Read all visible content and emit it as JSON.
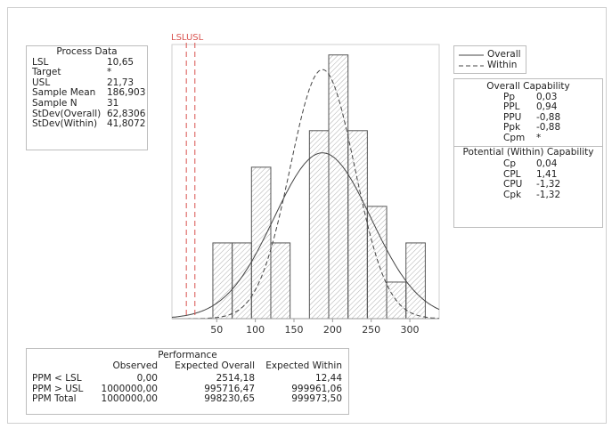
{
  "process_data": {
    "title": "Process Data",
    "rows": [
      {
        "label": "LSL",
        "value": "10,65"
      },
      {
        "label": "Target",
        "value": "*"
      },
      {
        "label": "USL",
        "value": "21,73"
      },
      {
        "label": "Sample Mean",
        "value": "186,903"
      },
      {
        "label": "Sample N",
        "value": "31"
      },
      {
        "label": "StDev(Overall)",
        "value": "62,8306"
      },
      {
        "label": "StDev(Within)",
        "value": "41,8072"
      }
    ]
  },
  "legend": {
    "items": [
      {
        "label": "Overall",
        "style": "solid"
      },
      {
        "label": "Within",
        "style": "dashed"
      }
    ]
  },
  "overall_capability": {
    "title": "Overall Capability",
    "rows": [
      {
        "label": "Pp",
        "value": "0,03"
      },
      {
        "label": "PPL",
        "value": "0,94"
      },
      {
        "label": "PPU",
        "value": "-0,88"
      },
      {
        "label": "Ppk",
        "value": "-0,88"
      },
      {
        "label": "Cpm",
        "value": "*"
      }
    ]
  },
  "potential_capability": {
    "title": "Potential (Within) Capability",
    "rows": [
      {
        "label": "Cp",
        "value": "0,04"
      },
      {
        "label": "CPL",
        "value": "1,41"
      },
      {
        "label": "CPU",
        "value": "-1,32"
      },
      {
        "label": "Cpk",
        "value": "-1,32"
      }
    ]
  },
  "performance": {
    "title": "Performance",
    "headers": [
      "Observed",
      "Expected Overall",
      "Expected Within"
    ],
    "rows": [
      {
        "label": "PPM < LSL",
        "observed": "0,00",
        "expected_overall": "2514,18",
        "expected_within": "12,44"
      },
      {
        "label": "PPM > USL",
        "observed": "1000000,00",
        "expected_overall": "995716,47",
        "expected_within": "999961,06"
      },
      {
        "label": "PPM Total",
        "observed": "1000000,00",
        "expected_overall": "998230,65",
        "expected_within": "999973,50"
      }
    ]
  },
  "chart_data": {
    "type": "bar",
    "title": "",
    "xlabel": "",
    "ylabel": "",
    "xlim": [
      -8,
      338
    ],
    "ylim": [
      0,
      0.0105
    ],
    "x_ticks": [
      50,
      100,
      150,
      200,
      250,
      300
    ],
    "spec_lines": [
      {
        "label": "LSL",
        "value": 10.65
      },
      {
        "label": "USL",
        "value": 21.73
      }
    ],
    "spec_label_text": "LSLUSL",
    "histogram": {
      "bins": [
        {
          "start": 45,
          "end": 70,
          "density": 0.0029
        },
        {
          "start": 70,
          "end": 95,
          "density": 0.0029
        },
        {
          "start": 95,
          "end": 120,
          "density": 0.0058
        },
        {
          "start": 120,
          "end": 145,
          "density": 0.0029
        },
        {
          "start": 145,
          "end": 170,
          "density": 0.0
        },
        {
          "start": 170,
          "end": 195,
          "density": 0.0072
        },
        {
          "start": 195,
          "end": 220,
          "density": 0.0101
        },
        {
          "start": 220,
          "end": 245,
          "density": 0.0072
        },
        {
          "start": 245,
          "end": 270,
          "density": 0.0043
        },
        {
          "start": 270,
          "end": 295,
          "density": 0.0014
        },
        {
          "start": 295,
          "end": 320,
          "density": 0.0029
        }
      ]
    },
    "series": [
      {
        "name": "Overall",
        "mean": 186.903,
        "stdev": 62.8306,
        "line": "solid"
      },
      {
        "name": "Within",
        "mean": 186.903,
        "stdev": 41.8072,
        "line": "dashed"
      }
    ],
    "grid": false,
    "legend": "top-right",
    "colors": {
      "spec_line": "#d9534f",
      "bar_stroke": "#555555",
      "curve": "#444444"
    }
  }
}
